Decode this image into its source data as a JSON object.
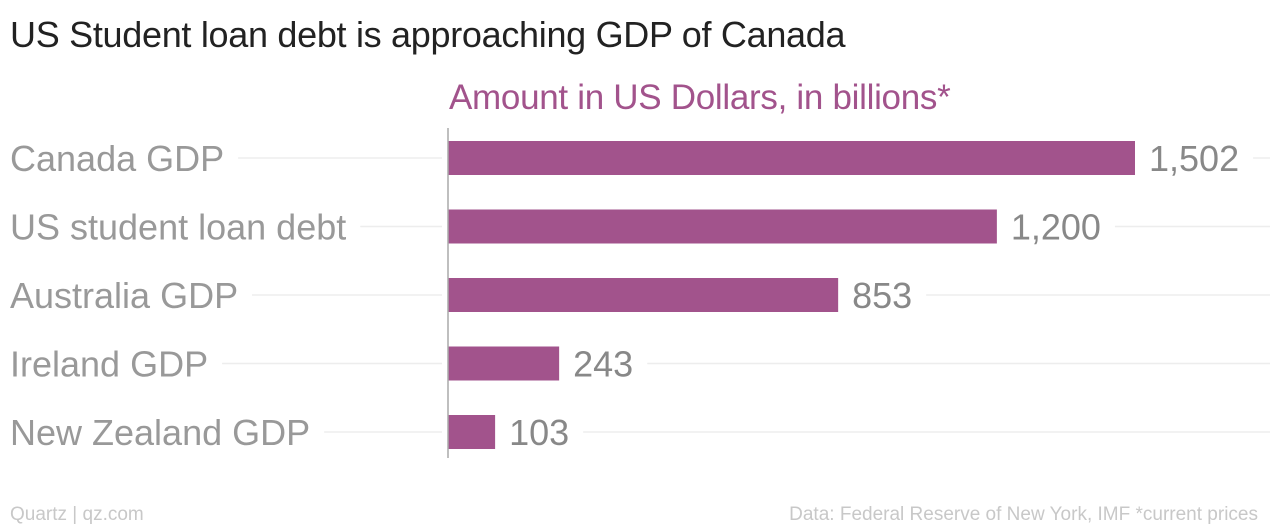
{
  "title": "US Student loan debt is approaching GDP of Canada",
  "footer": {
    "credit": "Quartz | qz.com",
    "source": "Data: Federal Reserve of New York, IMF *current prices"
  },
  "colors": {
    "bar": "#a2538c",
    "label": "#999999",
    "value": "#888888",
    "gridline": "#ededed",
    "axis": "#aaaaaa"
  },
  "chart_data": {
    "type": "bar",
    "orientation": "horizontal",
    "title": "US Student loan debt is approaching GDP of Canada",
    "xlabel": "Amount in US Dollars, in billions*",
    "ylabel": "",
    "categories": [
      "Canada GDP",
      "US student loan debt",
      "Australia GDP",
      "Ireland GDP",
      "New Zealand GDP"
    ],
    "values": [
      1502,
      1200,
      853,
      243,
      103
    ],
    "value_labels": [
      "1,502",
      "1,200",
      "853",
      "243",
      "103"
    ],
    "xlim": [
      0,
      1502
    ],
    "grid": true,
    "legend": "none"
  }
}
